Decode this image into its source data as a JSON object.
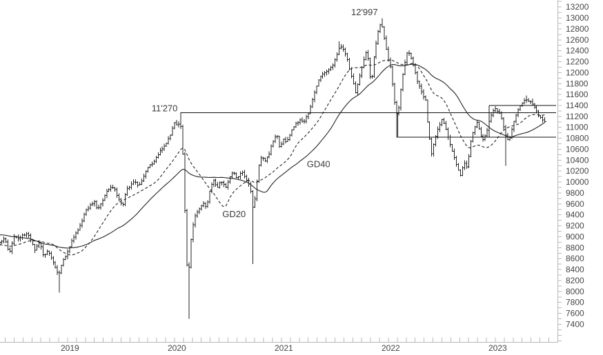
{
  "colors": {
    "background": "#ffffff",
    "bar": "#222222",
    "ma20": "#222222",
    "ma40": "#222222",
    "annotation_line": "#111111",
    "axis_line": "#b8b8b8",
    "tick": "#b8b8b8",
    "axis_text": "#444444",
    "annotation_text": "#3a3a3a"
  },
  "x_axis": {
    "year_labels": [
      "2019",
      "2020",
      "2021",
      "2022",
      "2023"
    ],
    "first_year": 2019,
    "minor_ticks_per_year": 12
  },
  "y_axis": {
    "min": 7400,
    "max": 13200,
    "label_step": 200,
    "tick_step": 100,
    "labels": [
      "13200",
      "13000",
      "12800",
      "12600",
      "12400",
      "12200",
      "12000",
      "11800",
      "11600",
      "11400",
      "11200",
      "11000",
      "10800",
      "10600",
      "10400",
      "10200",
      "10000",
      "9800",
      "9600",
      "9400",
      "9200",
      "9000",
      "8800",
      "8600",
      "8400",
      "8200",
      "8000",
      "7800",
      "7600",
      "7400"
    ]
  },
  "chart_data": {
    "type": "ohlc",
    "timeframe": "weekly",
    "x_range": {
      "start": 2018.45,
      "end": 2023.54
    },
    "y_range": [
      7400,
      13200
    ],
    "grid": "off",
    "levels": {
      "resistance": 11270,
      "all_time_high": 12997,
      "box_bottom": 10820,
      "box_top": 11400,
      "covid_low": 7500
    },
    "moving_averages": [
      {
        "name": "GD20",
        "window": 20,
        "style": "dashed"
      },
      {
        "name": "GD40",
        "window": 40,
        "style": "solid"
      }
    ],
    "annotation_texts": [
      {
        "name": "peak-label",
        "text": "12'997",
        "t": 2021.86,
        "v": 13050,
        "anchor": "middle"
      },
      {
        "name": "resistance-label",
        "text": "11'270",
        "t": 2020.112,
        "v": 11295,
        "anchor": "end"
      },
      {
        "name": "gd40-label",
        "text": "GD40",
        "t": 2021.43,
        "v": 10270,
        "anchor": "middle"
      },
      {
        "name": "gd20-label",
        "text": "GD20",
        "t": 2020.64,
        "v": 9360,
        "anchor": "middle"
      }
    ],
    "annotation_lines": [
      {
        "type": "h",
        "v": 11270,
        "t1": 2020.14,
        "t2": 2023.65
      },
      {
        "type": "h",
        "v": 10820,
        "t1": 2022.17,
        "t2": 2023.65
      },
      {
        "type": "h",
        "v": 11400,
        "t1": 2023.025,
        "t2": 2023.65
      },
      {
        "type": "v",
        "t": 2022.17,
        "v1": 11270,
        "v2": 10820
      },
      {
        "type": "v",
        "t": 2023.025,
        "v1": 11400,
        "v2": 10820
      }
    ],
    "series": {
      "seed": 7,
      "close_jitter": 20,
      "wick_jitter": 45,
      "pre_anchors": [
        [
          2017.7,
          9050
        ],
        [
          2017.85,
          9150
        ],
        [
          2018.0,
          9350
        ],
        [
          2018.06,
          9420
        ],
        [
          2018.12,
          8950
        ],
        [
          2018.2,
          8800
        ],
        [
          2018.3,
          8750
        ],
        [
          2018.4,
          8870
        ],
        [
          2018.44,
          8890
        ]
      ],
      "anchors": [
        [
          2018.45,
          8900
        ],
        [
          2018.5,
          8960
        ],
        [
          2018.54,
          8700
        ],
        [
          2018.58,
          9010
        ],
        [
          2018.63,
          8950
        ],
        [
          2018.69,
          9070
        ],
        [
          2018.73,
          8980
        ],
        [
          2018.78,
          8760
        ],
        [
          2018.82,
          8900
        ],
        [
          2018.86,
          8620
        ],
        [
          2018.9,
          8760
        ],
        [
          2018.94,
          8550
        ],
        [
          2018.97,
          8420
        ],
        [
          2019.0,
          8300
        ],
        [
          2019.04,
          8560
        ],
        [
          2019.08,
          8720
        ],
        [
          2019.13,
          8960
        ],
        [
          2019.17,
          9080
        ],
        [
          2019.21,
          9250
        ],
        [
          2019.25,
          9460
        ],
        [
          2019.29,
          9550
        ],
        [
          2019.33,
          9650
        ],
        [
          2019.36,
          9480
        ],
        [
          2019.4,
          9620
        ],
        [
          2019.44,
          9800
        ],
        [
          2019.48,
          9900
        ],
        [
          2019.52,
          9870
        ],
        [
          2019.56,
          9700
        ],
        [
          2019.6,
          9560
        ],
        [
          2019.63,
          9830
        ],
        [
          2019.67,
          9950
        ],
        [
          2019.71,
          10020
        ],
        [
          2019.75,
          9900
        ],
        [
          2019.79,
          10100
        ],
        [
          2019.83,
          10250
        ],
        [
          2019.88,
          10350
        ],
        [
          2019.92,
          10480
        ],
        [
          2019.96,
          10600
        ],
        [
          2020.0,
          10690
        ],
        [
          2020.04,
          10820
        ],
        [
          2020.08,
          11080
        ],
        [
          2020.11,
          11050
        ],
        [
          2020.135,
          11110
        ],
        [
          2020.155,
          10850
        ],
        [
          2020.175,
          9850
        ],
        [
          2020.195,
          8550
        ],
        [
          2020.215,
          8350
        ],
        [
          2020.24,
          9000
        ],
        [
          2020.27,
          9350
        ],
        [
          2020.31,
          9500
        ],
        [
          2020.35,
          9620
        ],
        [
          2020.38,
          9520
        ],
        [
          2020.42,
          9900
        ],
        [
          2020.45,
          10050
        ],
        [
          2020.48,
          9880
        ],
        [
          2020.52,
          10020
        ],
        [
          2020.56,
          9890
        ],
        [
          2020.6,
          10100
        ],
        [
          2020.63,
          10180
        ],
        [
          2020.67,
          10050
        ],
        [
          2020.71,
          10200
        ],
        [
          2020.75,
          10060
        ],
        [
          2020.79,
          9900
        ],
        [
          2020.815,
          9550
        ],
        [
          2020.84,
          9750
        ],
        [
          2020.87,
          10300
        ],
        [
          2020.9,
          10480
        ],
        [
          2020.93,
          10400
        ],
        [
          2020.96,
          10480
        ],
        [
          2021.0,
          10700
        ],
        [
          2021.04,
          10880
        ],
        [
          2021.07,
          10620
        ],
        [
          2021.1,
          10800
        ],
        [
          2021.13,
          10700
        ],
        [
          2021.17,
          10920
        ],
        [
          2021.21,
          11050
        ],
        [
          2021.25,
          11130
        ],
        [
          2021.29,
          11070
        ],
        [
          2021.33,
          11230
        ],
        [
          2021.37,
          11480
        ],
        [
          2021.4,
          11700
        ],
        [
          2021.44,
          11920
        ],
        [
          2021.48,
          11980
        ],
        [
          2021.52,
          12020
        ],
        [
          2021.56,
          12120
        ],
        [
          2021.6,
          12300
        ],
        [
          2021.63,
          12480
        ],
        [
          2021.67,
          12420
        ],
        [
          2021.71,
          12150
        ],
        [
          2021.75,
          11850
        ],
        [
          2021.78,
          11620
        ],
        [
          2021.81,
          11900
        ],
        [
          2021.84,
          12150
        ],
        [
          2021.87,
          12380
        ],
        [
          2021.9,
          12200
        ],
        [
          2021.92,
          11750
        ],
        [
          2021.95,
          12300
        ],
        [
          2021.98,
          12650
        ],
        [
          2022.0,
          12880
        ],
        [
          2022.02,
          12900
        ],
        [
          2022.05,
          12600
        ],
        [
          2022.08,
          12250
        ],
        [
          2022.11,
          12050
        ],
        [
          2022.14,
          11500
        ],
        [
          2022.17,
          11150
        ],
        [
          2022.2,
          11700
        ],
        [
          2022.23,
          12100
        ],
        [
          2022.26,
          12400
        ],
        [
          2022.3,
          12250
        ],
        [
          2022.33,
          12050
        ],
        [
          2022.36,
          11800
        ],
        [
          2022.4,
          11600
        ],
        [
          2022.43,
          11500
        ],
        [
          2022.46,
          10900
        ],
        [
          2022.49,
          10500
        ],
        [
          2022.52,
          10800
        ],
        [
          2022.56,
          11050
        ],
        [
          2022.59,
          11150
        ],
        [
          2022.62,
          11000
        ],
        [
          2022.66,
          10700
        ],
        [
          2022.7,
          10450
        ],
        [
          2022.73,
          10250
        ],
        [
          2022.76,
          10100
        ],
        [
          2022.79,
          10380
        ],
        [
          2022.82,
          10250
        ],
        [
          2022.85,
          10700
        ],
        [
          2022.88,
          10950
        ],
        [
          2022.91,
          11120
        ],
        [
          2022.94,
          10900
        ],
        [
          2022.97,
          10780
        ],
        [
          2023.0,
          10900
        ],
        [
          2023.03,
          11120
        ],
        [
          2023.06,
          11290
        ],
        [
          2023.09,
          11330
        ],
        [
          2023.12,
          11260
        ],
        [
          2023.15,
          11120
        ],
        [
          2023.19,
          10760
        ],
        [
          2023.22,
          10820
        ],
        [
          2023.25,
          11050
        ],
        [
          2023.28,
          11240
        ],
        [
          2023.31,
          11380
        ],
        [
          2023.34,
          11460
        ],
        [
          2023.37,
          11520
        ],
        [
          2023.4,
          11480
        ],
        [
          2023.43,
          11430
        ],
        [
          2023.46,
          11330
        ],
        [
          2023.49,
          11220
        ],
        [
          2023.52,
          11180
        ],
        [
          2023.54,
          11100
        ]
      ],
      "spike_lows": [
        [
          2019.0,
          7980
        ],
        [
          2020.215,
          7500
        ],
        [
          2020.815,
          8500
        ],
        [
          2022.17,
          10810
        ],
        [
          2023.19,
          10300
        ]
      ],
      "spike_highs": [
        [
          2020.135,
          11270
        ],
        [
          2021.63,
          12570
        ],
        [
          2022.02,
          12997
        ],
        [
          2023.37,
          11580
        ]
      ]
    }
  }
}
